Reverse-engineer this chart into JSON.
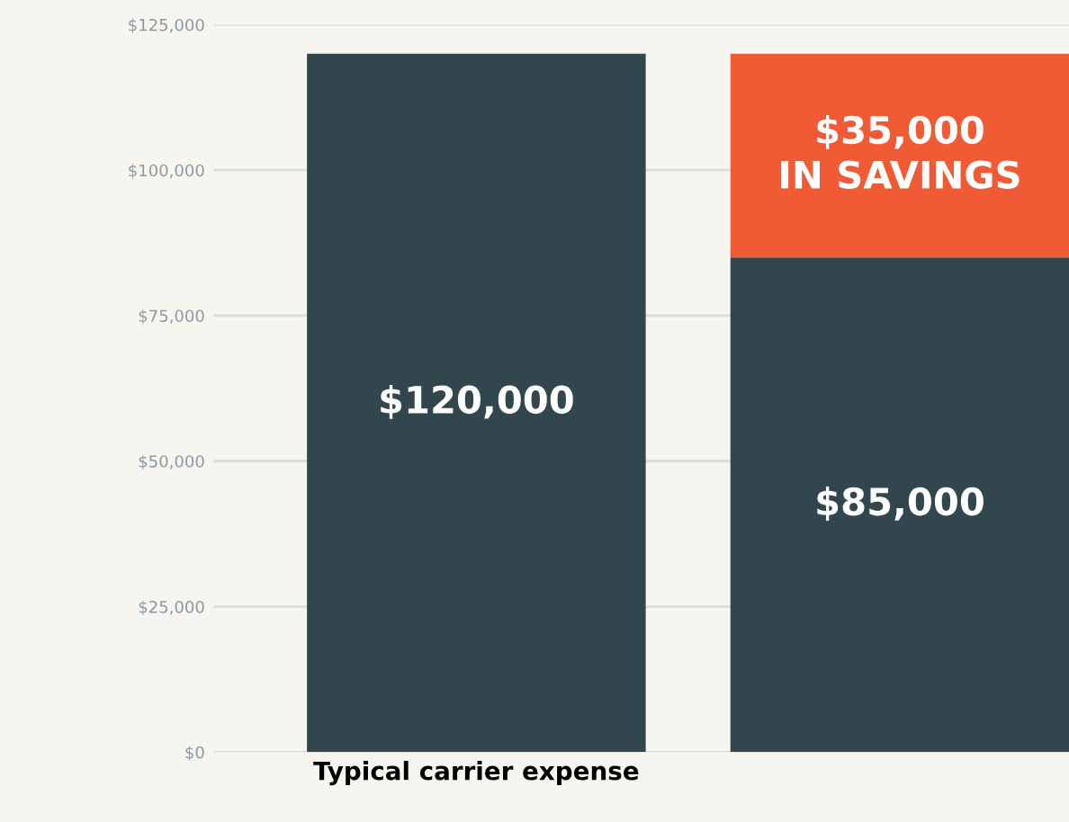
{
  "chart_data": {
    "type": "bar",
    "stacked": true,
    "categories": [
      "Typical carrier expense",
      null
    ],
    "series": [
      {
        "color": "#32464d",
        "values": [
          120000,
          85000
        ],
        "value_labels": [
          "$120,000",
          "$85,000"
        ]
      },
      {
        "color": "#f05a35",
        "values": [
          null,
          35000
        ],
        "value_labels": [
          null,
          "$35,000\nIN SAVINGS"
        ]
      }
    ],
    "ylim": [
      0,
      125000
    ],
    "yticks": [
      {
        "value": 0,
        "label": "$0"
      },
      {
        "value": 25000,
        "label": "$25,000"
      },
      {
        "value": 50000,
        "label": "$50,000"
      },
      {
        "value": 75000,
        "label": "$75,000"
      },
      {
        "value": 100000,
        "label": "$100,000"
      },
      {
        "value": 125000,
        "label": "$125,000"
      }
    ],
    "grid": "y"
  }
}
